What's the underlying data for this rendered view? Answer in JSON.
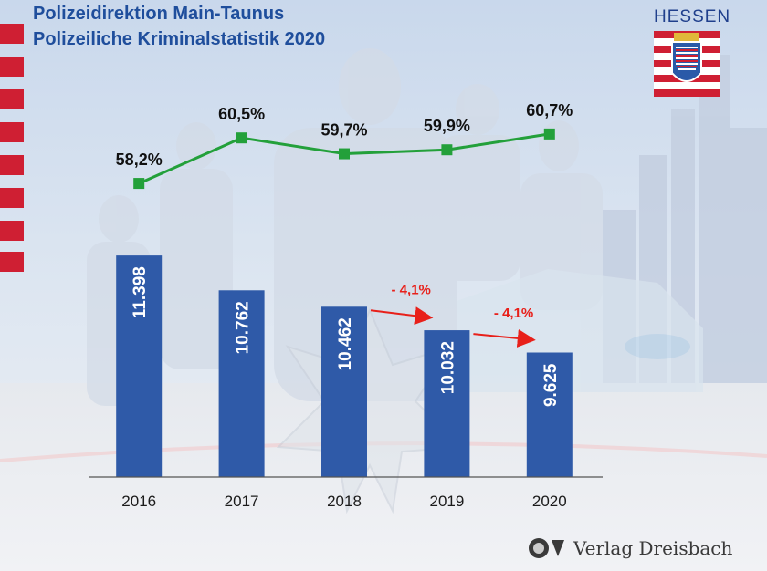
{
  "header": {
    "title_line1": "Polizeidirektion Main-Taunus",
    "title_line2": "Polizeiliche Kriminalstatistik 2020",
    "state_label": "HESSEN"
  },
  "watermark": {
    "text": "Verlag Dreisbach"
  },
  "colors": {
    "bar": "#2f5aa8",
    "line": "#23a03a",
    "title": "#1f4e9c",
    "change_arrow": "#e8201a",
    "stripe": "#cf1f33"
  },
  "chart_data": {
    "type": "bar+line",
    "categories": [
      "2016",
      "2017",
      "2018",
      "2019",
      "2020"
    ],
    "series": [
      {
        "kind": "bar",
        "values": [
          11398,
          10762,
          10462,
          10032,
          9625
        ],
        "labels": [
          "11.398",
          "10.762",
          "10.462",
          "10.032",
          "9.625"
        ]
      },
      {
        "kind": "line",
        "values": [
          58.2,
          60.5,
          59.7,
          59.9,
          60.7
        ],
        "labels": [
          "58,2%",
          "60,5%",
          "59,7%",
          "59,9%",
          "60,7%"
        ]
      }
    ],
    "annotations": [
      {
        "from": "2018",
        "to": "2019",
        "text": "- 4,1%"
      },
      {
        "from": "2019",
        "to": "2020",
        "text": "- 4,1%"
      }
    ],
    "bar_ylim": [
      7350,
      11900
    ],
    "line_ylim": [
      54.1,
      62.4
    ],
    "grid": false,
    "legend": "none"
  }
}
